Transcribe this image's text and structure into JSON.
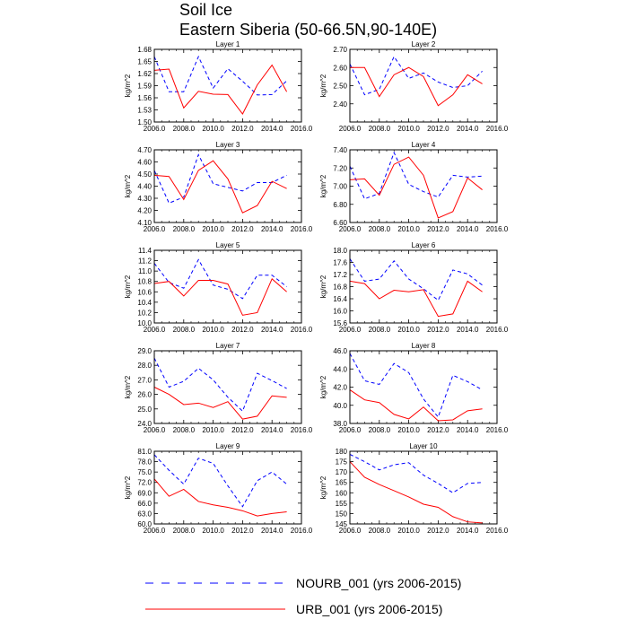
{
  "figure": {
    "title_line1": "Soil Ice",
    "title_line2": "Eastern Siberia (50-66.5N,90-140E)"
  },
  "legend": [
    {
      "label": "NOURB_001 (yrs 2006-2015)",
      "color": "#0000ff",
      "style": "dashed"
    },
    {
      "label": "URB_001 (yrs 2006-2015)",
      "color": "#ff0000",
      "style": "solid"
    }
  ],
  "chart_data": [
    {
      "type": "line",
      "title": "Layer 1",
      "ylabel": "kg/m^2",
      "xlim": [
        2006,
        2016
      ],
      "ylim": [
        1.5,
        1.68
      ],
      "xticks": [
        "2006.0",
        "2008.0",
        "2010.0",
        "2012.0",
        "2014.0",
        "2016.0"
      ],
      "yticks": [
        "1.50",
        "1.53",
        "1.56",
        "1.59",
        "1.62",
        "1.65",
        "1.68"
      ],
      "x": [
        2006,
        2007,
        2008,
        2009,
        2010,
        2011,
        2012,
        2013,
        2014,
        2015
      ],
      "series": [
        {
          "name": "NOURB_001 (yrs 2006-2015)",
          "values": [
            1.662,
            1.575,
            1.575,
            1.662,
            1.584,
            1.632,
            1.601,
            1.567,
            1.568,
            1.602
          ]
        },
        {
          "name": "URB_001 (yrs 2006-2015)",
          "values": [
            1.628,
            1.631,
            1.535,
            1.576,
            1.569,
            1.568,
            1.52,
            1.592,
            1.641,
            1.575
          ]
        }
      ]
    },
    {
      "type": "line",
      "title": "Layer 2",
      "ylabel": "kg/m^2",
      "xlim": [
        2006,
        2016
      ],
      "ylim": [
        2.3,
        2.7
      ],
      "xticks": [
        "2006.0",
        "2008.0",
        "2010.0",
        "2012.0",
        "2014.0",
        "2016.0"
      ],
      "yticks": [
        "2.40",
        "2.50",
        "2.60",
        "2.70"
      ],
      "x": [
        2006,
        2007,
        2008,
        2009,
        2010,
        2011,
        2012,
        2013,
        2014,
        2015
      ],
      "series": [
        {
          "name": "NOURB_001 (yrs 2006-2015)",
          "values": [
            2.62,
            2.45,
            2.48,
            2.66,
            2.54,
            2.57,
            2.52,
            2.49,
            2.5,
            2.58
          ]
        },
        {
          "name": "URB_001 (yrs 2006-2015)",
          "values": [
            2.6,
            2.6,
            2.44,
            2.56,
            2.6,
            2.55,
            2.39,
            2.45,
            2.56,
            2.51
          ]
        }
      ]
    },
    {
      "type": "line",
      "title": "Layer 3",
      "ylabel": "kg/m^2",
      "xlim": [
        2006,
        2016
      ],
      "ylim": [
        4.1,
        4.7
      ],
      "xticks": [
        "2006.0",
        "2008.0",
        "2010.0",
        "2012.0",
        "2014.0",
        "2016.0"
      ],
      "yticks": [
        "4.10",
        "4.20",
        "4.30",
        "4.40",
        "4.50",
        "4.60",
        "4.70"
      ],
      "x": [
        2006,
        2007,
        2008,
        2009,
        2010,
        2011,
        2012,
        2013,
        2014,
        2015
      ],
      "series": [
        {
          "name": "NOURB_001 (yrs 2006-2015)",
          "values": [
            4.53,
            4.26,
            4.31,
            4.66,
            4.42,
            4.39,
            4.36,
            4.43,
            4.43,
            4.49
          ]
        },
        {
          "name": "URB_001 (yrs 2006-2015)",
          "values": [
            4.49,
            4.48,
            4.29,
            4.53,
            4.61,
            4.46,
            4.18,
            4.24,
            4.44,
            4.38
          ]
        }
      ]
    },
    {
      "type": "line",
      "title": "Layer 4",
      "ylabel": "kg/m^2",
      "xlim": [
        2006,
        2016
      ],
      "ylim": [
        6.6,
        7.4
      ],
      "xticks": [
        "2006.0",
        "2008.0",
        "2010.0",
        "2012.0",
        "2014.0",
        "2016.0"
      ],
      "yticks": [
        "6.60",
        "6.80",
        "7.00",
        "7.20",
        "7.40"
      ],
      "x": [
        2006,
        2007,
        2008,
        2009,
        2010,
        2011,
        2012,
        2013,
        2014,
        2015
      ],
      "series": [
        {
          "name": "NOURB_001 (yrs 2006-2015)",
          "values": [
            7.22,
            6.86,
            6.92,
            7.37,
            7.02,
            6.94,
            6.88,
            7.12,
            7.1,
            7.11
          ]
        },
        {
          "name": "URB_001 (yrs 2006-2015)",
          "values": [
            7.07,
            7.08,
            6.9,
            7.24,
            7.32,
            7.12,
            6.65,
            6.72,
            7.09,
            6.96
          ]
        }
      ]
    },
    {
      "type": "line",
      "title": "Layer 5",
      "ylabel": "kg/m^2",
      "xlim": [
        2006,
        2016
      ],
      "ylim": [
        10.0,
        11.4
      ],
      "xticks": [
        "2006.0",
        "2008.0",
        "2010.0",
        "2012.0",
        "2014.0",
        "2016.0"
      ],
      "yticks": [
        "10.0",
        "10.2",
        "10.4",
        "10.6",
        "10.8",
        "11.0",
        "11.2",
        "11.4"
      ],
      "x": [
        2006,
        2007,
        2008,
        2009,
        2010,
        2011,
        2012,
        2013,
        2014,
        2015
      ],
      "series": [
        {
          "name": "NOURB_001 (yrs 2006-2015)",
          "values": [
            11.15,
            10.78,
            10.67,
            11.22,
            10.73,
            10.65,
            10.47,
            10.92,
            10.92,
            10.7
          ]
        },
        {
          "name": "URB_001 (yrs 2006-2015)",
          "values": [
            10.76,
            10.8,
            10.52,
            10.82,
            10.82,
            10.75,
            10.15,
            10.2,
            10.85,
            10.6
          ]
        }
      ]
    },
    {
      "type": "line",
      "title": "Layer 6",
      "ylabel": "kg/m^2",
      "xlim": [
        2006,
        2016
      ],
      "ylim": [
        15.6,
        18.0
      ],
      "xticks": [
        "2006.0",
        "2008.0",
        "2010.0",
        "2012.0",
        "2014.0",
        "2016.0"
      ],
      "yticks": [
        "15.6",
        "16.0",
        "16.4",
        "16.8",
        "17.2",
        "17.6",
        "18.0"
      ],
      "x": [
        2006,
        2007,
        2008,
        2009,
        2010,
        2011,
        2012,
        2013,
        2014,
        2015
      ],
      "series": [
        {
          "name": "NOURB_001 (yrs 2006-2015)",
          "values": [
            17.72,
            16.98,
            17.05,
            17.65,
            17.05,
            16.73,
            16.35,
            17.35,
            17.22,
            16.85
          ]
        },
        {
          "name": "URB_001 (yrs 2006-2015)",
          "values": [
            16.98,
            16.9,
            16.4,
            16.68,
            16.63,
            16.7,
            15.82,
            15.9,
            16.98,
            16.63
          ]
        }
      ]
    },
    {
      "type": "line",
      "title": "Layer 7",
      "ylabel": "kg/m^2",
      "xlim": [
        2006,
        2016
      ],
      "ylim": [
        24.0,
        29.0
      ],
      "xticks": [
        "2006.0",
        "2008.0",
        "2010.0",
        "2012.0",
        "2014.0",
        "2016.0"
      ],
      "yticks": [
        "24.0",
        "25.0",
        "26.0",
        "27.0",
        "28.0",
        "29.0"
      ],
      "x": [
        2006,
        2007,
        2008,
        2009,
        2010,
        2011,
        2012,
        2013,
        2014,
        2015
      ],
      "series": [
        {
          "name": "NOURB_001 (yrs 2006-2015)",
          "values": [
            28.5,
            26.5,
            26.9,
            27.8,
            27.0,
            25.8,
            24.85,
            27.45,
            26.95,
            26.4
          ]
        },
        {
          "name": "URB_001 (yrs 2006-2015)",
          "values": [
            26.5,
            26.0,
            25.3,
            25.4,
            25.1,
            25.5,
            24.3,
            24.5,
            25.9,
            25.8
          ]
        }
      ]
    },
    {
      "type": "line",
      "title": "Layer 8",
      "ylabel": "kg/m^2",
      "xlim": [
        2006,
        2016
      ],
      "ylim": [
        38.0,
        46.0
      ],
      "xticks": [
        "2006.0",
        "2008.0",
        "2010.0",
        "2012.0",
        "2014.0",
        "2016.0"
      ],
      "yticks": [
        "38.0",
        "40.0",
        "42.0",
        "44.0",
        "46.0"
      ],
      "x": [
        2006,
        2007,
        2008,
        2009,
        2010,
        2011,
        2012,
        2013,
        2014,
        2015
      ],
      "series": [
        {
          "name": "NOURB_001 (yrs 2006-2015)",
          "values": [
            45.7,
            42.7,
            42.3,
            44.6,
            43.6,
            40.7,
            38.7,
            43.3,
            42.6,
            41.7
          ]
        },
        {
          "name": "URB_001 (yrs 2006-2015)",
          "values": [
            41.7,
            40.6,
            40.3,
            39.0,
            38.5,
            39.8,
            38.3,
            38.4,
            39.4,
            39.6
          ]
        }
      ]
    },
    {
      "type": "line",
      "title": "Layer 9",
      "ylabel": "kg/m^2",
      "xlim": [
        2006,
        2016
      ],
      "ylim": [
        60.0,
        81.0
      ],
      "xticks": [
        "2006.0",
        "2008.0",
        "2010.0",
        "2012.0",
        "2014.0",
        "2016.0"
      ],
      "yticks": [
        "60.0",
        "63.0",
        "66.0",
        "69.0",
        "72.0",
        "75.0",
        "78.0",
        "81.0"
      ],
      "x": [
        2006,
        2007,
        2008,
        2009,
        2010,
        2011,
        2012,
        2013,
        2014,
        2015
      ],
      "series": [
        {
          "name": "NOURB_001 (yrs 2006-2015)",
          "values": [
            80.0,
            75.5,
            71.5,
            79.0,
            77.5,
            71.0,
            65.0,
            72.5,
            75.0,
            71.5
          ]
        },
        {
          "name": "URB_001 (yrs 2006-2015)",
          "values": [
            73.0,
            68.0,
            70.0,
            66.5,
            65.5,
            64.8,
            63.8,
            62.3,
            63.0,
            63.5
          ]
        }
      ]
    },
    {
      "type": "line",
      "title": "Layer 10",
      "ylabel": "kg/m^2",
      "xlim": [
        2006,
        2016
      ],
      "ylim": [
        145,
        180
      ],
      "xticks": [
        "2006.0",
        "2008.0",
        "2010.0",
        "2012.0",
        "2014.0",
        "2016.0"
      ],
      "yticks": [
        "145",
        "150",
        "155",
        "160",
        "165",
        "170",
        "175",
        "180"
      ],
      "x": [
        2006,
        2007,
        2008,
        2009,
        2010,
        2011,
        2012,
        2013,
        2014,
        2015
      ],
      "series": [
        {
          "name": "NOURB_001 (yrs 2006-2015)",
          "values": [
            178.5,
            175.0,
            171.0,
            173.5,
            174.5,
            168.5,
            164.5,
            160.0,
            164.5,
            165.0
          ]
        },
        {
          "name": "URB_001 (yrs 2006-2015)",
          "values": [
            175.0,
            167.5,
            164.0,
            161.0,
            158.0,
            154.5,
            153.0,
            148.5,
            146.0,
            145.5
          ]
        }
      ]
    }
  ]
}
